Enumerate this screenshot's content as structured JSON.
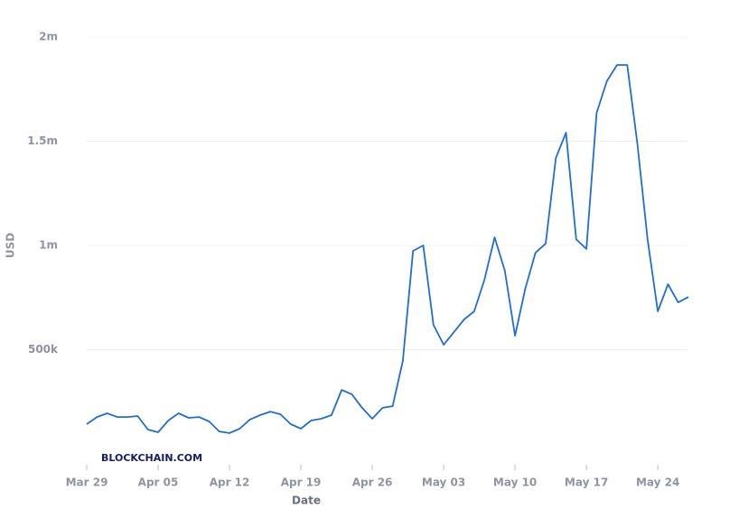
{
  "chart_data": {
    "type": "line",
    "xlabel": "Date",
    "ylabel": "USD",
    "watermark": "BLOCKCHAIN.COM",
    "categories": [
      "Mar 29",
      null,
      null,
      null,
      null,
      null,
      null,
      "Apr 05",
      null,
      null,
      null,
      null,
      null,
      null,
      "Apr 12",
      null,
      null,
      null,
      null,
      null,
      null,
      "Apr 19",
      null,
      null,
      null,
      null,
      null,
      null,
      "Apr 26",
      null,
      null,
      null,
      null,
      null,
      null,
      "May 03",
      null,
      null,
      null,
      null,
      null,
      null,
      "May 10",
      null,
      null,
      null,
      null,
      null,
      null,
      "May 17",
      null,
      null,
      null,
      null,
      null,
      null,
      "May 24",
      null,
      null,
      null
    ],
    "series": [
      {
        "color": "#1f6ed4",
        "values": [
          143000,
          177000,
          195000,
          177000,
          177000,
          182000,
          117000,
          104000,
          160000,
          195000,
          173000,
          177000,
          156000,
          108000,
          100000,
          121000,
          165000,
          186000,
          203000,
          190000,
          143000,
          121000,
          160000,
          169000,
          186000,
          307000,
          286000,
          221000,
          169000,
          221000,
          229000,
          446000,
          974000,
          1000000,
          619000,
          524000,
          584000,
          645000,
          684000,
          835000,
          1039000,
          879000,
          567000,
          792000,
          965000,
          1009000,
          1420000,
          1541000,
          1030000,
          983000,
          1636000,
          1788000,
          1866000,
          1866000,
          1485000,
          1030000,
          684000,
          814000,
          727000,
          753000
        ]
      }
    ],
    "ylim": [
      0,
      2000000
    ],
    "yticks": [
      {
        "value": 500000,
        "label": "500k"
      },
      {
        "value": 1000000,
        "label": "1m"
      },
      {
        "value": 1500000,
        "label": "1.5m"
      },
      {
        "value": 2000000,
        "label": "2m"
      }
    ],
    "grid": true
  }
}
